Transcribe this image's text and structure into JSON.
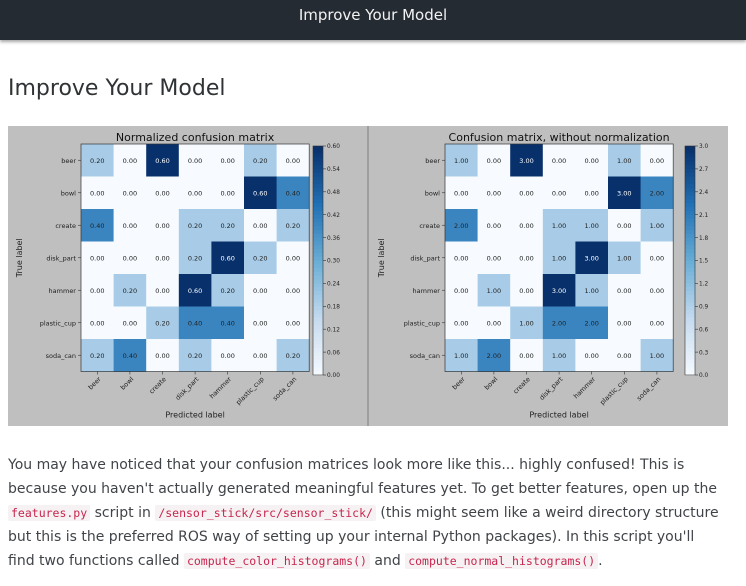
{
  "topbar": {
    "title": "Improve Your Model"
  },
  "page": {
    "heading": "Improve Your Model"
  },
  "paragraph": {
    "t1": "You may have noticed that your confusion matrices look more like this... highly confused! This is because you haven't actually generated meaningful features yet. To get better features, open up the ",
    "code1": "features.py",
    "t2": " script in ",
    "code2": "/sensor_stick/src/sensor_stick/",
    "t3": " (this might seem like a weird directory structure but this is the preferred ROS way of setting up your internal Python packages). In this script you'll find two functions called ",
    "code3": "compute_color_histograms()",
    "t4": " and ",
    "code4": "compute_normal_histograms()",
    "t5": "."
  },
  "chart_data": [
    {
      "type": "heatmap",
      "title": "Normalized confusion matrix",
      "xlabel": "Predicted label",
      "ylabel": "True label",
      "categories": [
        "beer",
        "bowl",
        "create",
        "disk_part",
        "hammer",
        "plastic_cup",
        "soda_can"
      ],
      "values": [
        [
          0.2,
          0.0,
          0.6,
          0.0,
          0.0,
          0.2,
          0.0
        ],
        [
          0.0,
          0.0,
          0.0,
          0.0,
          0.0,
          0.6,
          0.4
        ],
        [
          0.4,
          0.0,
          0.0,
          0.2,
          0.2,
          0.0,
          0.2
        ],
        [
          0.0,
          0.0,
          0.0,
          0.2,
          0.6,
          0.2,
          0.0
        ],
        [
          0.0,
          0.2,
          0.0,
          0.6,
          0.2,
          0.0,
          0.0
        ],
        [
          0.0,
          0.0,
          0.2,
          0.4,
          0.4,
          0.0,
          0.0
        ],
        [
          0.2,
          0.4,
          0.0,
          0.2,
          0.0,
          0.0,
          0.2
        ]
      ],
      "cell_labels": [
        [
          "0.20",
          "0.00",
          "0.60",
          "0.00",
          "0.00",
          "0.20",
          "0.00"
        ],
        [
          "0.00",
          "0.00",
          "0.00",
          "0.00",
          "0.00",
          "0.60",
          "0.40"
        ],
        [
          "0.40",
          "0.00",
          "0.00",
          "0.20",
          "0.20",
          "0.00",
          "0.20"
        ],
        [
          "0.00",
          "0.00",
          "0.00",
          "0.20",
          "0.60",
          "0.20",
          "0.00"
        ],
        [
          "0.00",
          "0.20",
          "0.00",
          "0.60",
          "0.20",
          "0.00",
          "0.00"
        ],
        [
          "0.00",
          "0.00",
          "0.20",
          "0.40",
          "0.40",
          "0.00",
          "0.00"
        ],
        [
          "0.20",
          "0.40",
          "0.00",
          "0.20",
          "0.00",
          "0.00",
          "0.20"
        ]
      ],
      "colorbar": {
        "range": [
          0,
          0.6
        ],
        "ticks": [
          "0.00",
          "0.06",
          "0.12",
          "0.18",
          "0.24",
          "0.30",
          "0.36",
          "0.42",
          "0.48",
          "0.54",
          "0.60"
        ]
      },
      "colormap": [
        "#f7fbff",
        "#c6dbef",
        "#6baed6",
        "#2171b5",
        "#08306b"
      ]
    },
    {
      "type": "heatmap",
      "title": "Confusion matrix, without normalization",
      "xlabel": "Predicted label",
      "ylabel": "True label",
      "categories": [
        "beer",
        "bowl",
        "create",
        "disk_part",
        "hammer",
        "plastic_cup",
        "soda_can"
      ],
      "values": [
        [
          1,
          0,
          3,
          0,
          0,
          1,
          0
        ],
        [
          0,
          0,
          0,
          0,
          0,
          3,
          2
        ],
        [
          2,
          0,
          0,
          1,
          1,
          0,
          1
        ],
        [
          0,
          0,
          0,
          1,
          3,
          1,
          0
        ],
        [
          0,
          1,
          0,
          3,
          1,
          0,
          0
        ],
        [
          0,
          0,
          1,
          2,
          2,
          0,
          0
        ],
        [
          1,
          2,
          0,
          1,
          0,
          0,
          1
        ]
      ],
      "cell_labels": [
        [
          "1.00",
          "0.00",
          "3.00",
          "0.00",
          "0.00",
          "1.00",
          "0.00"
        ],
        [
          "0.00",
          "0.00",
          "0.00",
          "0.00",
          "0.00",
          "3.00",
          "2.00"
        ],
        [
          "2.00",
          "0.00",
          "0.00",
          "1.00",
          "1.00",
          "0.00",
          "1.00"
        ],
        [
          "0.00",
          "0.00",
          "0.00",
          "1.00",
          "3.00",
          "1.00",
          "0.00"
        ],
        [
          "0.00",
          "1.00",
          "0.00",
          "3.00",
          "1.00",
          "0.00",
          "0.00"
        ],
        [
          "0.00",
          "0.00",
          "1.00",
          "2.00",
          "2.00",
          "0.00",
          "0.00"
        ],
        [
          "1.00",
          "2.00",
          "0.00",
          "1.00",
          "0.00",
          "0.00",
          "1.00"
        ]
      ],
      "colorbar": {
        "range": [
          0,
          3
        ],
        "ticks": [
          "0.0",
          "0.3",
          "0.6",
          "0.9",
          "1.2",
          "1.5",
          "1.8",
          "2.1",
          "2.4",
          "2.7",
          "3.0"
        ]
      },
      "colormap": [
        "#f7fbff",
        "#c6dbef",
        "#6baed6",
        "#2171b5",
        "#08306b"
      ]
    }
  ]
}
